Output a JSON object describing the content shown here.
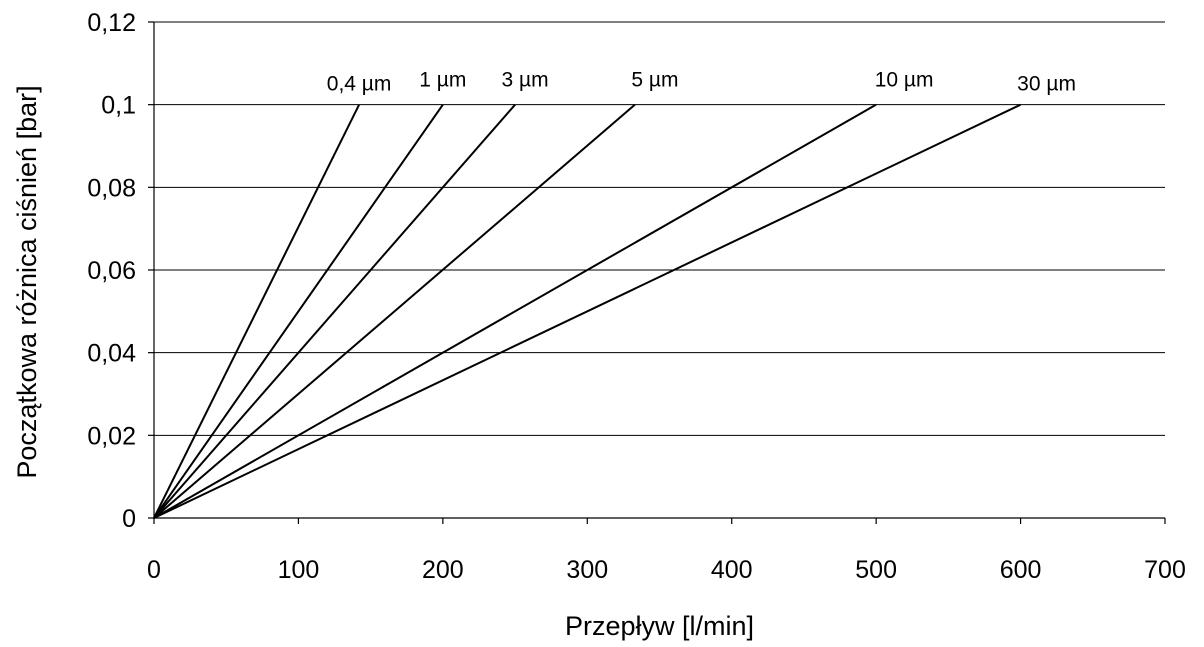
{
  "chart_data": {
    "type": "line",
    "xlabel": "Przepływ [l/min]",
    "ylabel": "Początkowa różnica ciśnień [bar]",
    "xlim": [
      0,
      700
    ],
    "ylim": [
      0,
      0.12
    ],
    "x_ticks": [
      "0",
      "100",
      "200",
      "300",
      "400",
      "500",
      "600",
      "700"
    ],
    "y_ticks": [
      "0",
      "0,02",
      "0,04",
      "0,06",
      "0,08",
      "0,1",
      "0,12"
    ],
    "grid": "horizontal",
    "series": [
      {
        "name": "0,4 µm",
        "x": [
          0,
          142
        ],
        "y": [
          0,
          0.1
        ]
      },
      {
        "name": "1 µm",
        "x": [
          0,
          200
        ],
        "y": [
          0,
          0.1
        ]
      },
      {
        "name": "3 µm",
        "x": [
          0,
          250
        ],
        "y": [
          0,
          0.1
        ]
      },
      {
        "name": "5 µm",
        "x": [
          0,
          333
        ],
        "y": [
          0,
          0.1
        ]
      },
      {
        "name": "10 µm",
        "x": [
          0,
          500
        ],
        "y": [
          0,
          0.1
        ]
      },
      {
        "name": "30 µm",
        "x": [
          0,
          600
        ],
        "y": [
          0,
          0.1
        ]
      }
    ],
    "line_color": "#000000"
  }
}
